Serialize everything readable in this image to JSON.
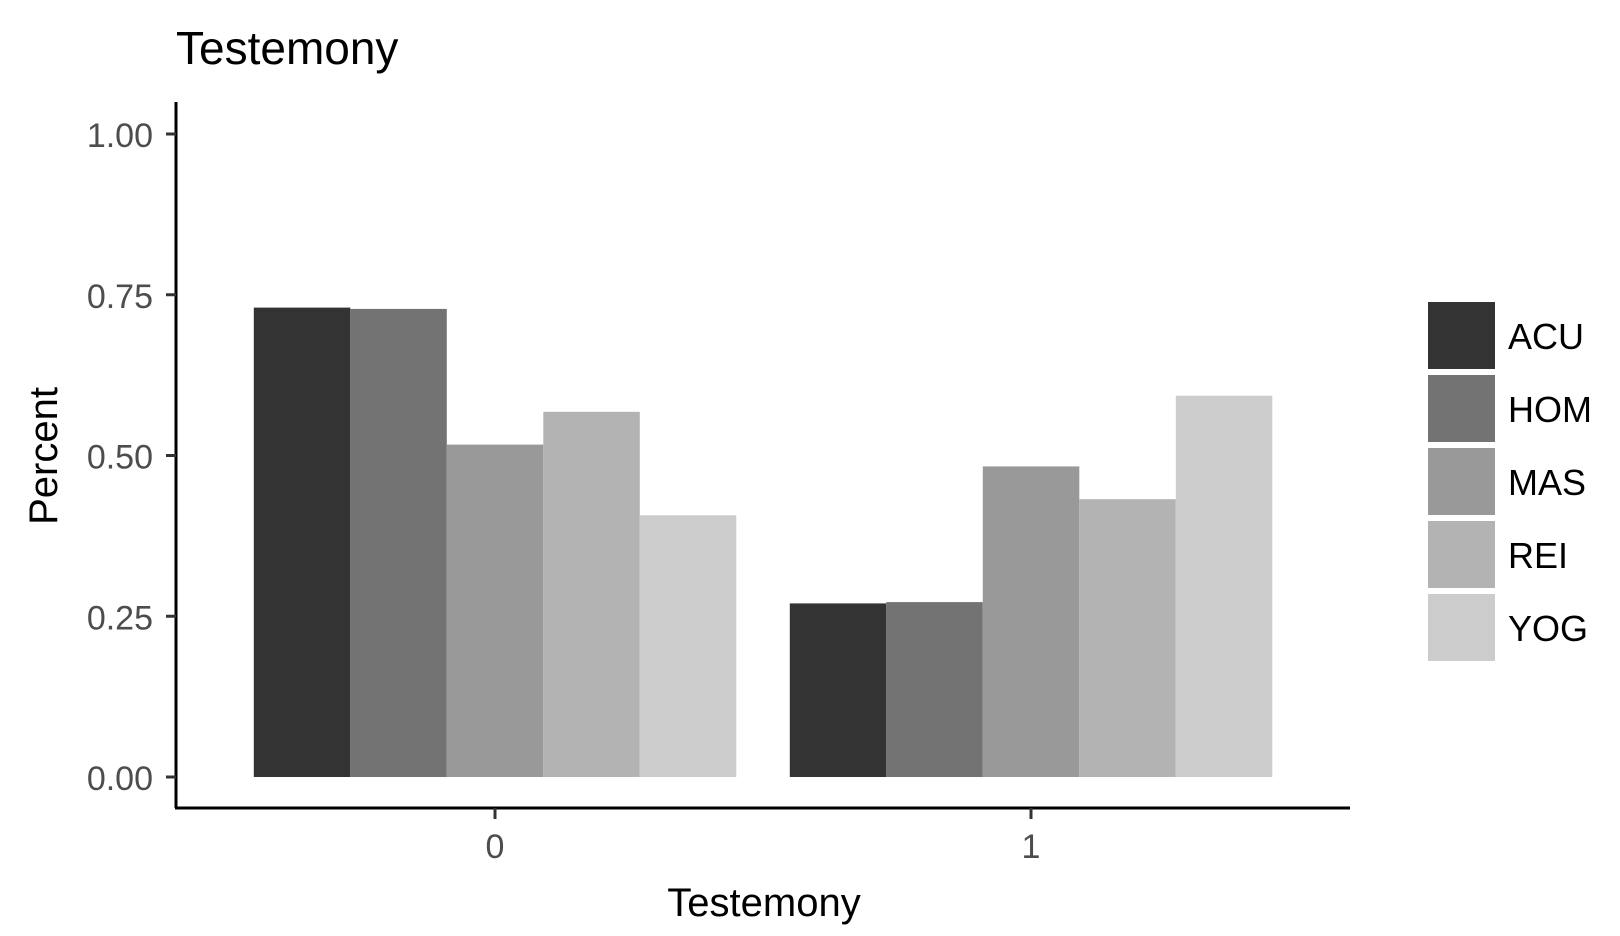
{
  "chart_data": {
    "type": "bar",
    "title": "Testemony",
    "xlabel": "Testemony",
    "ylabel": "Percent",
    "categories": [
      "0",
      "1"
    ],
    "ylim": [
      0,
      1.0
    ],
    "yticks": [
      "0.00",
      "0.25",
      "0.50",
      "0.75",
      "1.00"
    ],
    "ytick_values": [
      0,
      0.25,
      0.5,
      0.75,
      1.0
    ],
    "series": [
      {
        "name": "ACU",
        "color": "#333333",
        "values": [
          0.73,
          0.27
        ]
      },
      {
        "name": "HOM",
        "color": "#737373",
        "values": [
          0.728,
          0.272
        ]
      },
      {
        "name": "MAS",
        "color": "#999999",
        "values": [
          0.517,
          0.483
        ]
      },
      {
        "name": "REI",
        "color": "#b3b3b3",
        "values": [
          0.568,
          0.432
        ]
      },
      {
        "name": "YOG",
        "color": "#cccccc",
        "values": [
          0.407,
          0.593
        ]
      }
    ],
    "grid": false,
    "legend_position": "right"
  }
}
